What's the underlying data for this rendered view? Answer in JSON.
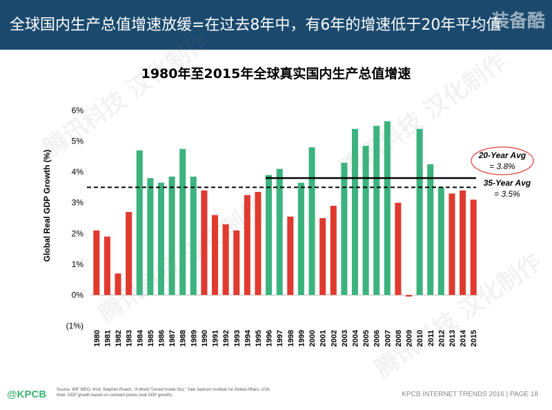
{
  "header": {
    "title": "全球国内生产总值增速放缓=在过去8年中，有6年的增速低于20年平均值",
    "logo_text": "装备酷"
  },
  "chart_data": {
    "type": "bar",
    "title": "1980年至2015年全球真实国内生产总值增速",
    "ylabel": "Global Real GDP Growth (%)",
    "ylim": [
      -1,
      6
    ],
    "yticks": [
      -1,
      0,
      1,
      2,
      3,
      4,
      5,
      6
    ],
    "ytick_labels": [
      "(1%)",
      "0%",
      "1%",
      "2%",
      "3%",
      "4%",
      "5%",
      "6%"
    ],
    "categories": [
      "1980",
      "1981",
      "1982",
      "1983",
      "1984",
      "1985",
      "1986",
      "1987",
      "1988",
      "1989",
      "1990",
      "1991",
      "1992",
      "1993",
      "1994",
      "1995",
      "1996",
      "1997",
      "1998",
      "1999",
      "2000",
      "2001",
      "2002",
      "2003",
      "2004",
      "2005",
      "2006",
      "2007",
      "2008",
      "2009",
      "2010",
      "2011",
      "2012",
      "2013",
      "2014",
      "2015"
    ],
    "values": [
      2.1,
      1.9,
      0.7,
      2.7,
      4.7,
      3.8,
      3.65,
      3.85,
      4.75,
      3.85,
      3.4,
      2.6,
      2.3,
      2.1,
      3.25,
      3.35,
      3.9,
      4.1,
      2.55,
      3.65,
      4.8,
      2.5,
      2.9,
      4.3,
      5.4,
      4.85,
      5.5,
      5.65,
      3.0,
      -0.05,
      5.4,
      4.25,
      3.5,
      3.3,
      3.4,
      3.1
    ],
    "colors": {
      "above_avg": "#3cb37e",
      "below_avg": "#e03a2f"
    },
    "avg_35yr": {
      "value": 3.5,
      "label_line1": "35-Year Avg",
      "label_line2": "= 3.5%",
      "style": "dashed"
    },
    "avg_20yr": {
      "value": 3.8,
      "start": "1996",
      "label_line1": "20-Year Avg",
      "label_line2": "= 3.8%",
      "style": "solid",
      "highlight_color": "#e03a2f"
    }
  },
  "footer": {
    "source_line1": "Source: IMF WEO, 4/16, Stephen Roach, \"A World Turned Inside Out,\" Yale Jackson Institute for Global Affairs, 2/16.",
    "source_line2": "Note: GDP growth based on constant prices (real GDP growth).",
    "brand": "@KPCB",
    "right_text": "KPCB INTERNET TRENDS 2016  |  PAGE 18"
  },
  "watermark": "腾讯科技 汉化制作"
}
